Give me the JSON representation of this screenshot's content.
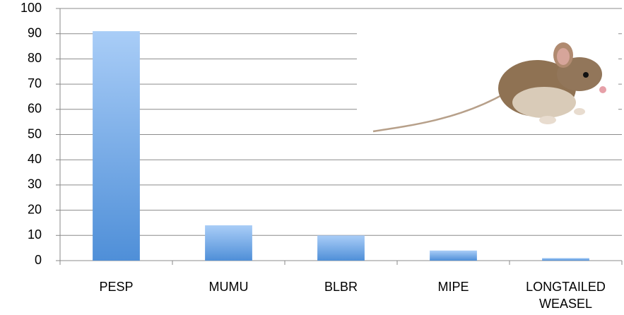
{
  "chart_data": {
    "type": "bar",
    "categories": [
      "PESP",
      "MUMU",
      "BLBR",
      "MIPE",
      "LONGTAILED WEASEL"
    ],
    "values": [
      91,
      14,
      10,
      4,
      1
    ],
    "color": "#6fa6e6",
    "ylim": [
      0,
      100
    ],
    "yticks": [
      0,
      10,
      20,
      30,
      40,
      50,
      60,
      70,
      80,
      90,
      100
    ],
    "grid": true
  }
}
